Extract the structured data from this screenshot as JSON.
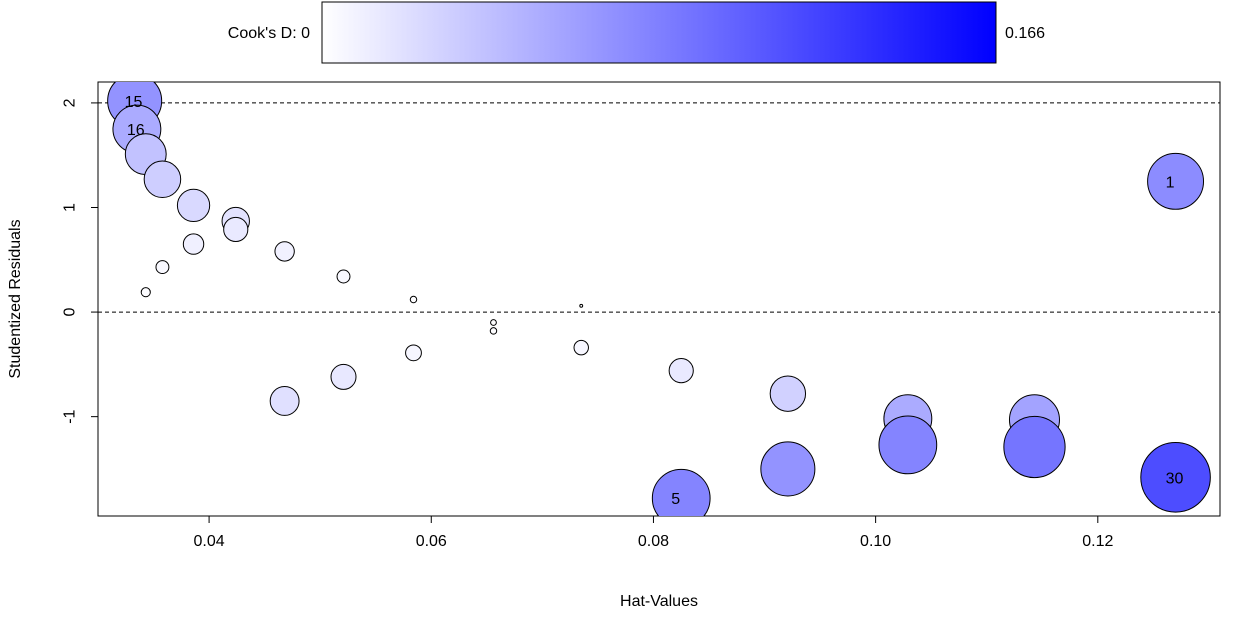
{
  "chart_data": {
    "type": "scatter",
    "xlabel": "Hat-Values",
    "ylabel": "Studentized Residuals",
    "xlim": [
      0.03,
      0.131
    ],
    "ylim": [
      -1.95,
      2.2
    ],
    "xticks": [
      0.04,
      0.06,
      0.08,
      0.1,
      0.12
    ],
    "xtick_labels": [
      "0.04",
      "0.06",
      "0.08",
      "0.10",
      "0.12"
    ],
    "yticks": [
      -1,
      0,
      1,
      2
    ],
    "ytick_labels": [
      "-1",
      "0",
      "1",
      "2"
    ],
    "reference_lines_y": [
      2,
      0
    ],
    "colorbar": {
      "label_min": "Cook's D: 0",
      "label_max": "0.166",
      "min": 0,
      "max": 0.166,
      "color_low": "#ffffff",
      "color_high": "#0000ff"
    },
    "points": [
      {
        "x": 0.0333,
        "y": 2.02,
        "d": 0.07,
        "label": "15"
      },
      {
        "x": 0.0335,
        "y": 1.75,
        "d": 0.055,
        "label": "16"
      },
      {
        "x": 0.0343,
        "y": 1.51,
        "d": 0.04,
        "label": ""
      },
      {
        "x": 0.0358,
        "y": 1.27,
        "d": 0.032,
        "label": ""
      },
      {
        "x": 0.0386,
        "y": 1.02,
        "d": 0.025,
        "label": ""
      },
      {
        "x": 0.0424,
        "y": 0.87,
        "d": 0.018,
        "label": ""
      },
      {
        "x": 0.0424,
        "y": 0.79,
        "d": 0.014,
        "label": ""
      },
      {
        "x": 0.0386,
        "y": 0.65,
        "d": 0.01,
        "label": ""
      },
      {
        "x": 0.0468,
        "y": 0.58,
        "d": 0.009,
        "label": ""
      },
      {
        "x": 0.0358,
        "y": 0.43,
        "d": 0.004,
        "label": ""
      },
      {
        "x": 0.0521,
        "y": 0.34,
        "d": 0.004,
        "label": ""
      },
      {
        "x": 0.0343,
        "y": 0.19,
        "d": 0.002,
        "label": ""
      },
      {
        "x": 0.0584,
        "y": 0.12,
        "d": 0.001,
        "label": ""
      },
      {
        "x": 0.0735,
        "y": 0.06,
        "d": 0.0002,
        "label": ""
      },
      {
        "x": 0.0656,
        "y": -0.1,
        "d": 0.0008,
        "label": ""
      },
      {
        "x": 0.0656,
        "y": -0.18,
        "d": 0.001,
        "label": ""
      },
      {
        "x": 0.0735,
        "y": -0.34,
        "d": 0.005,
        "label": ""
      },
      {
        "x": 0.0584,
        "y": -0.39,
        "d": 0.006,
        "label": ""
      },
      {
        "x": 0.0825,
        "y": -0.56,
        "d": 0.014,
        "label": ""
      },
      {
        "x": 0.0521,
        "y": -0.62,
        "d": 0.015,
        "label": ""
      },
      {
        "x": 0.0921,
        "y": -0.78,
        "d": 0.03,
        "label": ""
      },
      {
        "x": 0.0468,
        "y": -0.85,
        "d": 0.02,
        "label": ""
      },
      {
        "x": 0.1029,
        "y": -1.02,
        "d": 0.055,
        "label": ""
      },
      {
        "x": 0.1143,
        "y": -1.03,
        "d": 0.06,
        "label": ""
      },
      {
        "x": 0.1029,
        "y": -1.27,
        "d": 0.08,
        "label": ""
      },
      {
        "x": 0.1143,
        "y": -1.29,
        "d": 0.09,
        "label": ""
      },
      {
        "x": 0.0921,
        "y": -1.5,
        "d": 0.07,
        "label": ""
      },
      {
        "x": 0.0825,
        "y": -1.78,
        "d": 0.08,
        "label": "5"
      },
      {
        "x": 0.127,
        "y": 1.25,
        "d": 0.075,
        "label": "1"
      },
      {
        "x": 0.127,
        "y": -1.58,
        "d": 0.116,
        "label": "30"
      }
    ]
  }
}
